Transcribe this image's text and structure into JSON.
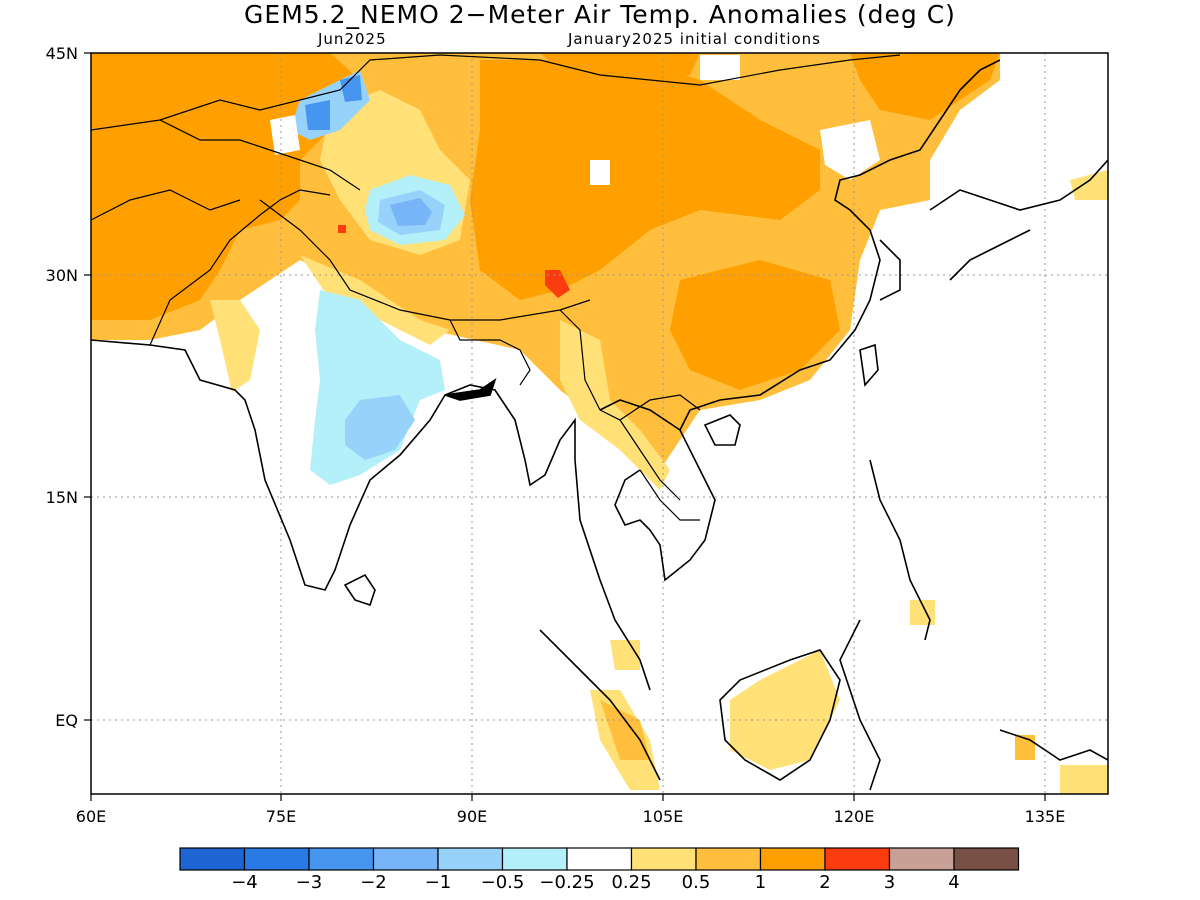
{
  "title": "GEM5.2_NEMO 2−Meter Air Temp. Anomalies (deg C)",
  "subtitle_left": "Jun2025",
  "subtitle_right": "January2025 initial conditions",
  "map": {
    "lon_range": [
      60,
      140
    ],
    "lat_range": [
      -5,
      45
    ],
    "x_ticks": [
      "60E",
      "75E",
      "90E",
      "105E",
      "120E",
      "135E"
    ],
    "y_ticks": [
      "45N",
      "30N",
      "15N",
      "EQ"
    ],
    "grid": "dotted"
  },
  "legend": {
    "colors": [
      "#1e64d2",
      "#2a7ae6",
      "#4696f0",
      "#78b4f8",
      "#96d2fa",
      "#b4f0fa",
      "#ffffff",
      "#ffe178",
      "#ffbe3c",
      "#ff9f00",
      "#fa3c0f",
      "#c8a096",
      "#785046"
    ],
    "labels": [
      "−4",
      "−3",
      "−2",
      "−1",
      "−0.5",
      "−0.25",
      "0.25",
      "0.5",
      "1",
      "2",
      "3",
      "4"
    ]
  }
}
